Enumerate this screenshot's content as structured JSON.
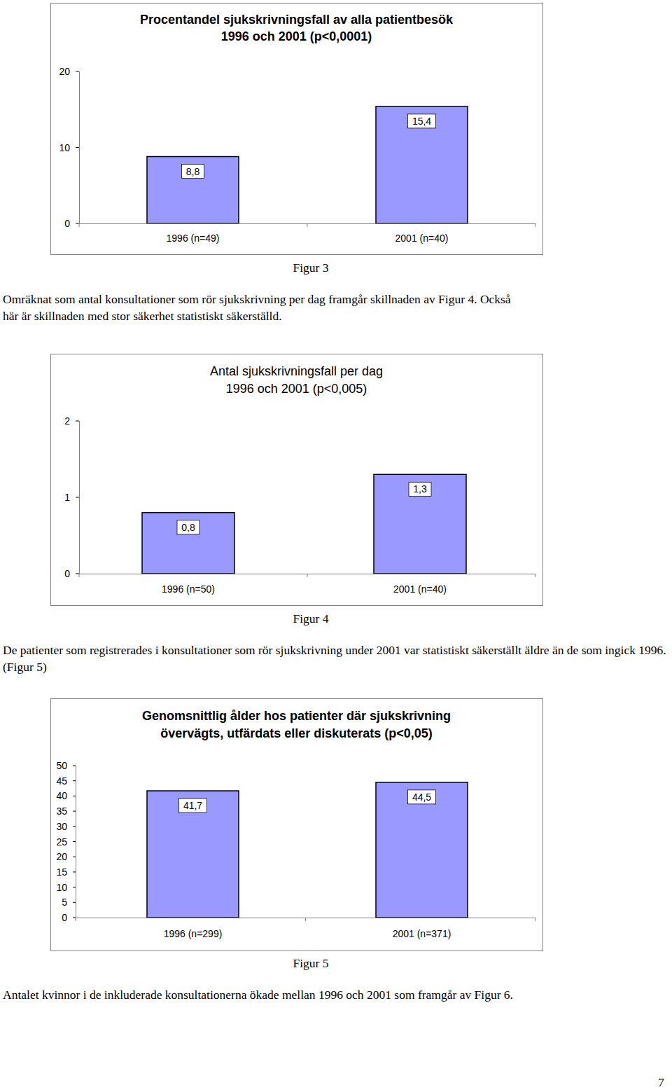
{
  "chart_data": [
    {
      "type": "bar",
      "title": "Procentandel sjukskrivningsfall av alla patientbesök",
      "subtitle": "1996 och 2001 (p<0,0001)",
      "categories": [
        "1996 (n=49)",
        "2001 (n=40)"
      ],
      "values": [
        8.8,
        15.4
      ],
      "value_labels": [
        "8,8",
        "15,4"
      ],
      "color": "#9999ff",
      "ylim": [
        0,
        20
      ],
      "yticks": [
        0,
        10,
        20
      ],
      "grid": false,
      "data_labels": true
    },
    {
      "type": "bar",
      "title": "Antal sjukskrivningsfall per dag",
      "subtitle": "1996 och 2001 (p<0,005)",
      "categories": [
        "1996 (n=50)",
        "2001 (n=40)"
      ],
      "values": [
        0.8,
        1.3
      ],
      "value_labels": [
        "0,8",
        "1,3"
      ],
      "color": "#9999ff",
      "ylim": [
        0,
        2
      ],
      "yticks": [
        0,
        1,
        2
      ],
      "grid": false,
      "data_labels": true
    },
    {
      "type": "bar",
      "title": "Genomsnittlig ålder hos patienter där sjukskrivning",
      "subtitle": "övervägts, utfärdats eller diskuterats (p<0,05)",
      "categories": [
        "1996 (n=299)",
        "2001 (n=371)"
      ],
      "values": [
        41.7,
        44.5
      ],
      "value_labels": [
        "41,7",
        "44,5"
      ],
      "color": "#9999ff",
      "ylim": [
        0,
        50
      ],
      "yticks": [
        0,
        5,
        10,
        15,
        20,
        25,
        30,
        35,
        40,
        45,
        50
      ],
      "grid": false,
      "data_labels": true
    }
  ],
  "document": {
    "captions": [
      "Figur 3",
      "Figur 4",
      "Figur 5"
    ],
    "paragraphs": [
      "Omräknat som antal konsultationer som rör sjukskrivning per dag framgår skillnaden av Figur 4. Också här är skillnaden med stor säkerhet statistiskt säkerställd.",
      "De patienter som registrerades i konsultationer som rör sjukskrivning under 2001 var statistiskt säkerställt äldre än de som ingick 1996. (Figur 5)",
      "Antalet kvinnor i de inkluderade konsultationerna ökade mellan 1996 och 2001 som framgår av Figur 6."
    ],
    "page_number": 7
  }
}
